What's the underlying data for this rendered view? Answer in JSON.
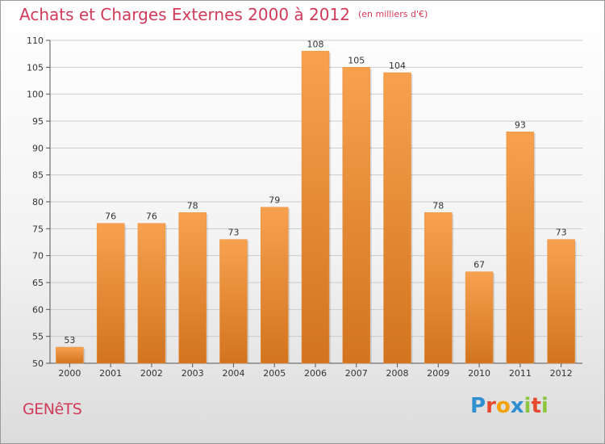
{
  "header": {
    "title": "Achats et Charges Externes 2000 à 2012",
    "subtitle": "(en milliers d'€)"
  },
  "footer": {
    "city": "GENêTS",
    "brand_letters": [
      "P",
      "r",
      "o",
      "x",
      "i",
      "t",
      "i"
    ],
    "brand_colors": [
      "#2f8fd1",
      "#e64a2e",
      "#f2a100",
      "#2f8fd1",
      "#8cc63f",
      "#e64a2e",
      "#8cc63f"
    ]
  },
  "colors": {
    "title": "#d23a5a",
    "bar_top": "#f7a14f",
    "bar_bottom": "#d2741f",
    "grid": "#cccccc"
  },
  "chart_data": {
    "type": "bar",
    "title": "Achats et Charges Externes 2000 à 2012",
    "subtitle": "(en milliers d'€)",
    "categories": [
      "2000",
      "2001",
      "2002",
      "2003",
      "2004",
      "2005",
      "2006",
      "2007",
      "2008",
      "2009",
      "2010",
      "2011",
      "2012"
    ],
    "values": [
      53,
      76,
      76,
      78,
      73,
      79,
      108,
      105,
      104,
      78,
      67,
      93,
      73
    ],
    "ylim": [
      50,
      110
    ],
    "yticks": [
      50,
      55,
      60,
      65,
      70,
      75,
      80,
      85,
      90,
      95,
      100,
      105,
      110
    ],
    "grid": true,
    "legend": "none"
  }
}
